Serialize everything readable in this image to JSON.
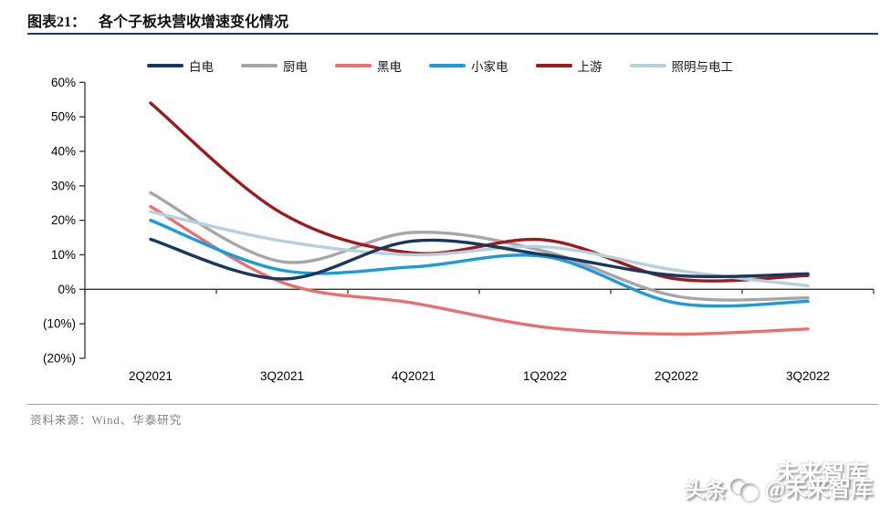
{
  "header": {
    "label": "图表21：",
    "title": "各个子板块营收增速变化情况"
  },
  "source": {
    "text": "资料来源：Wind、华泰研究"
  },
  "watermark": {
    "ghost": "未来智库",
    "brand": "头条",
    "handle": "@未来智库"
  },
  "chart_data": {
    "type": "line",
    "title": "各个子板块营收增速变化情况",
    "categories": [
      "2Q2021",
      "3Q2021",
      "4Q2021",
      "1Q2022",
      "2Q2022",
      "3Q2022"
    ],
    "series": [
      {
        "name": "白电",
        "color": "#17375E",
        "values": [
          14.5,
          3.0,
          14.0,
          10.0,
          4.0,
          4.5
        ]
      },
      {
        "name": "厨电",
        "color": "#A6A6A6",
        "values": [
          28.0,
          8.0,
          16.5,
          11.0,
          -2.0,
          -2.5
        ]
      },
      {
        "name": "黑电",
        "color": "#E8716F",
        "values": [
          24.0,
          2.0,
          -4.0,
          -11.0,
          -13.0,
          -11.5
        ]
      },
      {
        "name": "小家电",
        "color": "#199CD8",
        "values": [
          20.0,
          5.5,
          6.5,
          9.5,
          -4.0,
          -3.5
        ]
      },
      {
        "name": "上游",
        "color": "#9C1A1E",
        "values": [
          54.0,
          22.0,
          10.5,
          14.3,
          3.0,
          4.0
        ]
      },
      {
        "name": "照明与电工",
        "color": "#B6D0DE",
        "values": [
          22.5,
          14.0,
          10.0,
          12.3,
          5.5,
          1.0
        ]
      }
    ],
    "draw_order": [
      2,
      1,
      4,
      5,
      3,
      0
    ],
    "y_ticks": [
      {
        "label": "60%",
        "value": 60
      },
      {
        "label": "50%",
        "value": 50
      },
      {
        "label": "40%",
        "value": 40
      },
      {
        "label": "30%",
        "value": 30
      },
      {
        "label": "20%",
        "value": 20
      },
      {
        "label": "10%",
        "value": 10
      },
      {
        "label": "0%",
        "value": 0
      },
      {
        "label": "(10%)",
        "value": -10
      },
      {
        "label": "(20%)",
        "value": -20
      }
    ],
    "ylim": [
      -20,
      60
    ],
    "grid": false,
    "zero_axis": true,
    "legend_position": "top",
    "axis_color": "#333333"
  }
}
